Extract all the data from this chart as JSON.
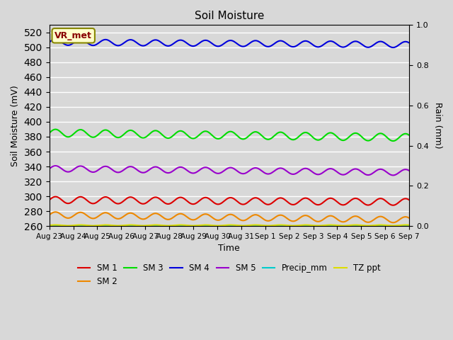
{
  "title": "Soil Moisture",
  "ylabel_left": "Soil Moisture (mV)",
  "ylabel_right": "Rain (mm)",
  "xlabel": "Time",
  "bg_color": "#d8d8d8",
  "ylim_left": [
    260,
    530
  ],
  "ylim_right": [
    0.0,
    1.0
  ],
  "yticks_left": [
    260,
    280,
    300,
    320,
    340,
    360,
    380,
    400,
    420,
    440,
    460,
    480,
    500,
    520
  ],
  "yticks_right": [
    0.0,
    0.2,
    0.4,
    0.6,
    0.8,
    1.0
  ],
  "n_points": 336,
  "sm1_base": 295,
  "sm1_amp": 4.5,
  "sm1_freq": 0.27,
  "sm1_trend": -0.008,
  "sm2_base": 275,
  "sm2_amp": 4.0,
  "sm2_freq": 0.27,
  "sm2_trend": -0.02,
  "sm3_base": 385,
  "sm3_amp": 5.0,
  "sm3_freq": 0.27,
  "sm3_trend": -0.018,
  "sm4_base": 507,
  "sm4_amp": 4.0,
  "sm4_freq": 0.27,
  "sm4_trend": -0.01,
  "sm5_base": 337,
  "sm5_amp": 4.0,
  "sm5_freq": 0.27,
  "sm5_trend": -0.015,
  "colors": {
    "SM 1": "#dd0000",
    "SM 2": "#ee8800",
    "SM 3": "#00dd00",
    "SM 4": "#0000dd",
    "SM 5": "#9900cc",
    "Precip_mm": "#00cccc",
    "TZ ppt": "#dddd00"
  },
  "vr_met_label": "VR_met",
  "vr_met_facecolor": "#ffffcc",
  "vr_met_edgecolor": "#888800",
  "vr_met_textcolor": "#880000",
  "x_date_labels": [
    "Aug 23",
    "Aug 24",
    "Aug 25",
    "Aug 26",
    "Aug 27",
    "Aug 28",
    "Aug 29",
    "Aug 30",
    "Aug 31",
    "Sep 1",
    "Sep 2",
    "Sep 3",
    "Sep 4",
    "Sep 5",
    "Sep 6",
    "Sep 7"
  ],
  "grid_color": "#ffffff",
  "line_width": 1.5
}
